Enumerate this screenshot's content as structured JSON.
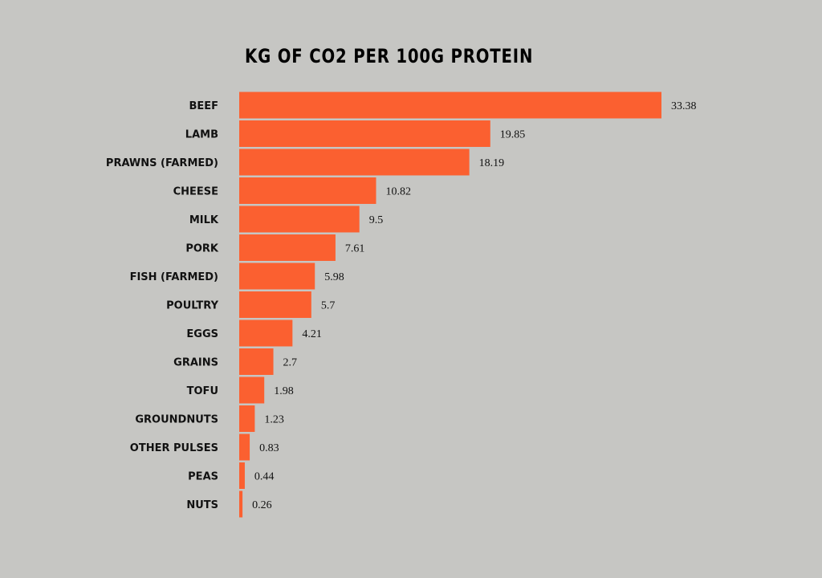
{
  "chart_data": {
    "type": "bar",
    "orientation": "horizontal",
    "title": "KG OF CO2 PER 100G PROTEIN",
    "xlabel": "",
    "ylabel": "",
    "categories": [
      "BEEF",
      "LAMB",
      "PRAWNS (FARMED)",
      "CHEESE",
      "MILK",
      "PORK",
      "FISH (FARMED)",
      "POULTRY",
      "EGGS",
      "GRAINS",
      "TOFU",
      "GROUNDNUTS",
      "OTHER PULSES",
      "PEAS",
      "NUTS"
    ],
    "values": [
      33.38,
      19.85,
      18.19,
      10.82,
      9.5,
      7.61,
      5.98,
      5.7,
      4.21,
      2.7,
      1.98,
      1.23,
      0.83,
      0.44,
      0.26
    ],
    "value_labels": [
      "33.38",
      "19.85",
      "18.19",
      "10.82",
      "9.5",
      "7.61",
      "5.98",
      "5.7",
      "4.21",
      "2.7",
      "1.98",
      "1.23",
      "0.83",
      "0.44",
      "0.26"
    ],
    "xlim": [
      0,
      33.38
    ],
    "grid": false,
    "legend": "none",
    "colors": {
      "bar": "#fb6030",
      "background": "#c6c6c3",
      "text": "#111111"
    }
  }
}
